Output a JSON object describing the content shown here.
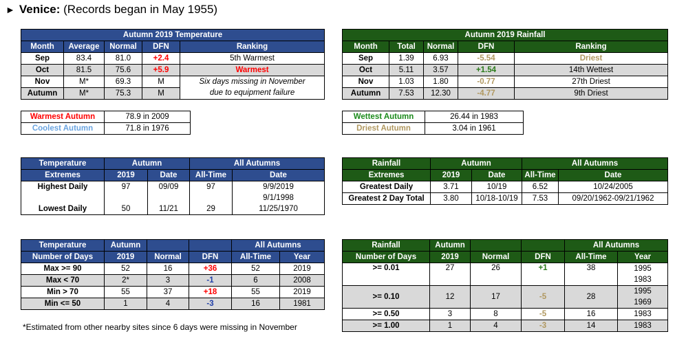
{
  "heading": {
    "arrow": "►",
    "station": "Venice:",
    "note": "(Records began in May 1955)"
  },
  "temp_table": {
    "title": "Autumn 2019 Temperature",
    "headers": [
      "Month",
      "Average",
      "Normal",
      "DFN",
      "Ranking"
    ],
    "rows": [
      [
        "Sep",
        "83.4",
        "81.0",
        "+2.4",
        "5th Warmest"
      ],
      [
        "Oct",
        "81.5",
        "75.6",
        "+5.9",
        "Warmest"
      ],
      [
        "Nov",
        "M*",
        "69.3",
        "M",
        "Six days missing in November"
      ],
      [
        "Autumn",
        "M*",
        "75.3",
        "M",
        "due to equipment failure"
      ]
    ]
  },
  "rain_table": {
    "title": "Autumn 2019 Rainfall",
    "headers": [
      "Month",
      "Total",
      "Normal",
      "DFN",
      "Ranking"
    ],
    "rows": [
      [
        "Sep",
        "1.39",
        "6.93",
        "-5.54",
        "Driest"
      ],
      [
        "Oct",
        "5.11",
        "3.57",
        "+1.54",
        "14th Wettest"
      ],
      [
        "Nov",
        "1.03",
        "1.80",
        "-0.77",
        "27th Driest"
      ],
      [
        "Autumn",
        "7.53",
        "12.30",
        "-4.77",
        "9th Driest"
      ]
    ]
  },
  "temp_records": [
    [
      "Warmest Autumn",
      "78.9 in 2009"
    ],
    [
      "Coolest Autumn",
      "71.8 in 1976"
    ]
  ],
  "rain_records": [
    [
      "Wettest Autumn",
      "26.44 in 1983"
    ],
    [
      "Driest Autumn",
      "3.04 in 1961"
    ]
  ],
  "temp_extremes": {
    "label1": "Temperature",
    "label2": "Extremes",
    "autumn": "Autumn",
    "all_autumns": "All Autumns",
    "sub": [
      "2019",
      "Date",
      "All-Time",
      "Date"
    ],
    "highest_label": "Highest Daily",
    "highest": [
      "97",
      "09/09",
      "97",
      "9/9/2019"
    ],
    "highest_extra": "9/1/1998",
    "lowest_label": "Lowest Daily",
    "lowest": [
      "50",
      "11/21",
      "29",
      "11/25/1970"
    ]
  },
  "rain_extremes": {
    "label1": "Rainfall",
    "label2": "Extremes",
    "autumn": "Autumn",
    "all_autumns": "All Autumns",
    "sub": [
      "2019",
      "Date",
      "All-Time",
      "Date"
    ],
    "greatest_label": "Greatest Daily",
    "greatest": [
      "3.71",
      "10/19",
      "6.52",
      "10/24/2005"
    ],
    "two_day_label": "Greatest 2 Day Total",
    "two_day": [
      "3.80",
      "10/18-10/19",
      "7.53",
      "09/20/1962-09/21/1962"
    ]
  },
  "temp_days": {
    "label1": "Temperature",
    "label2": "Number of Days",
    "autumn": "Autumn",
    "y2019": "2019",
    "normal": "Normal",
    "dfn": "DFN",
    "all_autumns": "All Autumns",
    "all_time": "All-Time",
    "year": "Year",
    "rows": [
      [
        "Max >= 90",
        "52",
        "16",
        "+36",
        "52",
        "2019"
      ],
      [
        "Max < 70",
        "2*",
        "3",
        "-1",
        "6",
        "2008"
      ],
      [
        "Min > 70",
        "55",
        "37",
        "+18",
        "55",
        "2019"
      ],
      [
        "Min <= 50",
        "1",
        "4",
        "-3",
        "16",
        "1981"
      ]
    ]
  },
  "rain_days": {
    "label1": "Rainfall",
    "label2": "Number of Days",
    "autumn": "Autumn",
    "y2019": "2019",
    "normal": "Normal",
    "dfn": "DFN",
    "all_autumns": "All Autumns",
    "all_time": "All-Time",
    "year": "Year",
    "rows": [
      [
        ">= 0.01",
        "27",
        "26",
        "+1",
        "38",
        "1995",
        "1983"
      ],
      [
        ">= 0.10",
        "12",
        "17",
        "-5",
        "28",
        "1995",
        "1969"
      ],
      [
        ">= 0.50",
        "3",
        "8",
        "-5",
        "16",
        "1983"
      ],
      [
        ">= 1.00",
        "1",
        "4",
        "-3",
        "14",
        "1983"
      ]
    ]
  },
  "footnote": "*Estimated from other nearby sites since 6 days were missing in November",
  "colors": {
    "blue_header": "#2e4d8f",
    "green_header": "#1e5a16",
    "red": "#ff0000",
    "shade": "#d9d9d9"
  }
}
